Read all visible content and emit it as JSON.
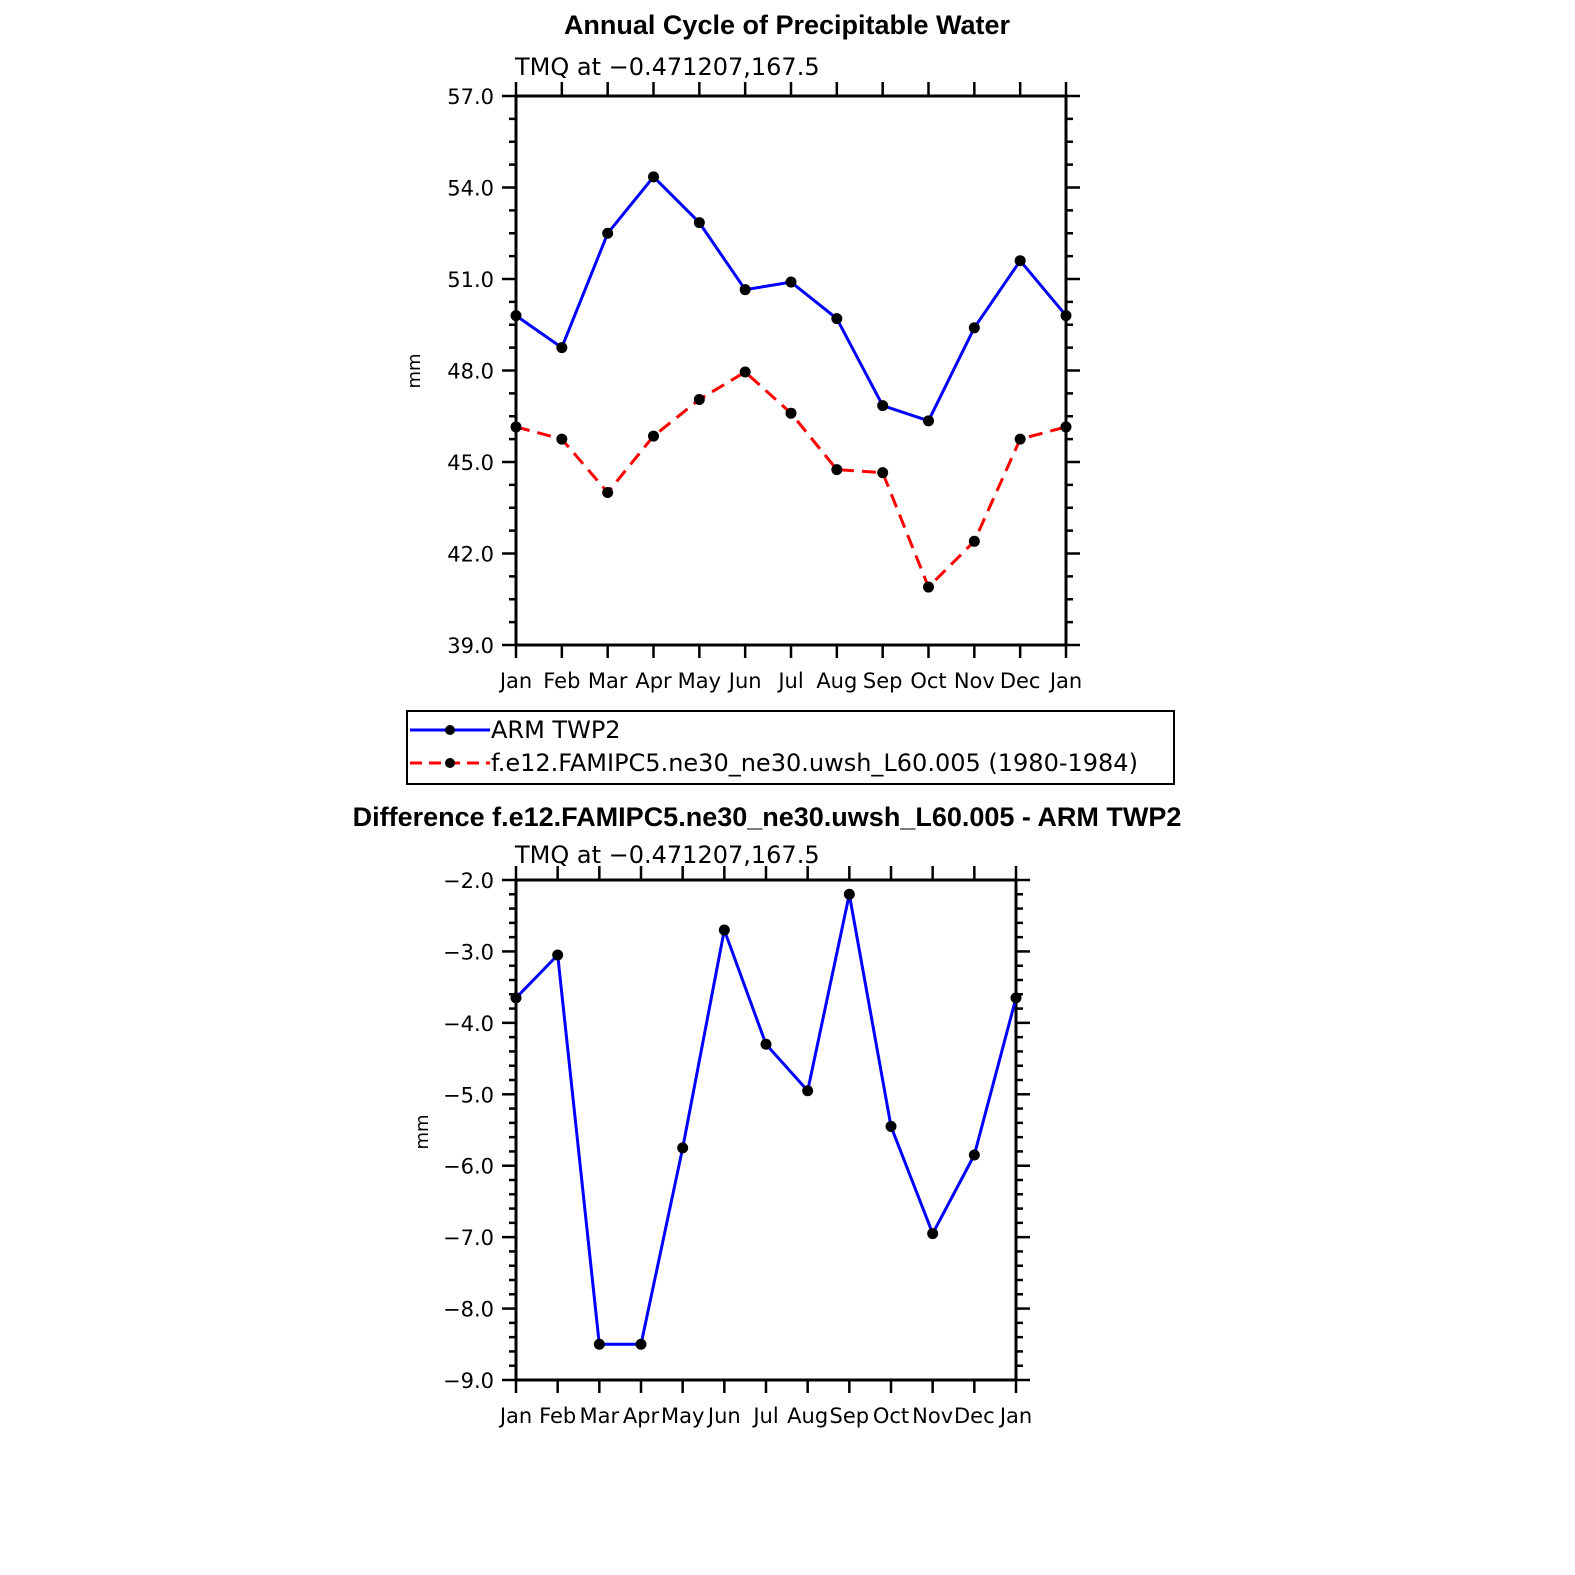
{
  "chart_data": [
    {
      "type": "line",
      "title": "Annual Cycle of Precipitable Water",
      "subtitle": "TMQ at -0.471207,167.5",
      "ylabel": "mm",
      "ylim": [
        39.0,
        57.0
      ],
      "yticks": [
        "39.0",
        "42.0",
        "45.0",
        "48.0",
        "51.0",
        "54.0",
        "57.0"
      ],
      "categories": [
        "Jan",
        "Feb",
        "Mar",
        "Apr",
        "May",
        "Jun",
        "Jul",
        "Aug",
        "Sep",
        "Oct",
        "Nov",
        "Dec",
        "Jan"
      ],
      "grid": false,
      "legend_position": "bottom",
      "series": [
        {
          "name": "ARM TWP2",
          "color": "#0000ff",
          "dash": "solid",
          "values": [
            49.8,
            48.75,
            52.5,
            54.35,
            52.85,
            50.65,
            50.9,
            49.7,
            46.85,
            46.35,
            49.4,
            51.6,
            49.8
          ]
        },
        {
          "name": "f.e12.FAMIPC5.ne30_ne30.uwsh_L60.005 (1980-1984)",
          "color": "#ff0000",
          "dash": "dashed",
          "values": [
            46.15,
            45.75,
            44.0,
            45.85,
            47.05,
            47.95,
            46.6,
            44.75,
            44.65,
            40.9,
            42.4,
            45.75,
            46.15
          ]
        }
      ]
    },
    {
      "type": "line",
      "title": "Difference f.e12.FAMIPC5.ne30_ne30.uwsh_L60.005 - ARM TWP2",
      "subtitle": "TMQ at -0.471207,167.5",
      "ylabel": "mm",
      "ylim": [
        -9.0,
        -2.0
      ],
      "yticks": [
        "-9.0",
        "-8.0",
        "-7.0",
        "-6.0",
        "-5.0",
        "-4.0",
        "-3.0",
        "-2.0"
      ],
      "categories": [
        "Jan",
        "Feb",
        "Mar",
        "Apr",
        "May",
        "Jun",
        "Jul",
        "Aug",
        "Sep",
        "Oct",
        "Nov",
        "Dec",
        "Jan"
      ],
      "grid": false,
      "series": [
        {
          "color": "#0000ff",
          "dash": "solid",
          "values": [
            -3.65,
            -3.05,
            -8.5,
            -8.5,
            -5.75,
            -2.7,
            -4.3,
            -4.95,
            -2.2,
            -5.45,
            -6.95,
            -5.85,
            -3.65
          ]
        }
      ]
    }
  ]
}
